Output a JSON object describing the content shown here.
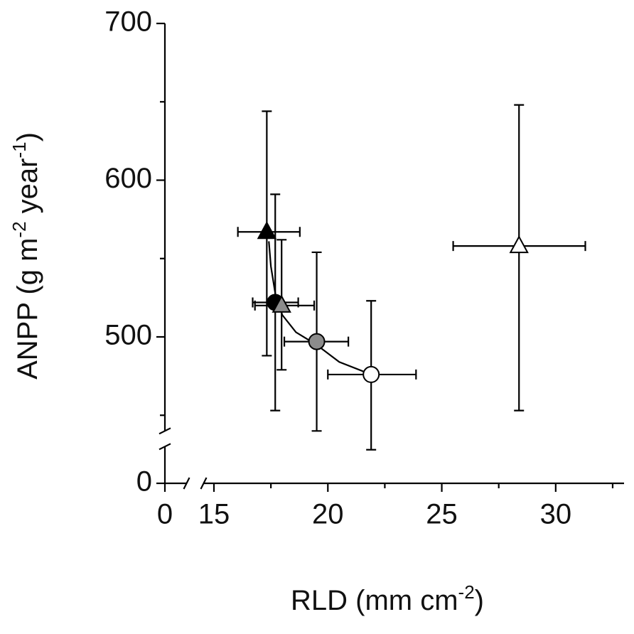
{
  "chart_data": {
    "type": "scatter",
    "xlabel": [
      "RLD (mm cm",
      "-2",
      ")"
    ],
    "ylabel": [
      "ANPP (g m",
      "-2",
      " year",
      "-1",
      ")"
    ],
    "xlim": [
      0,
      33
    ],
    "ylim": [
      0,
      700
    ],
    "x_break": [
      0,
      15
    ],
    "y_break": [
      0,
      440
    ],
    "xticks": [
      0,
      15,
      20,
      25,
      30
    ],
    "xticks_minor": [
      17.5,
      22.5,
      27.5,
      32.5
    ],
    "yticks": [
      0,
      500,
      600,
      700
    ],
    "yticks_minor": [
      450,
      550,
      650
    ],
    "x": [
      17.32,
      17.69,
      17.97,
      19.51,
      21.9,
      28.39
    ],
    "y": [
      567,
      522,
      520,
      497,
      476,
      558
    ],
    "x_low": [
      16.05,
      16.7,
      16.8,
      18.09,
      20.0,
      25.5
    ],
    "x_high": [
      18.77,
      18.7,
      19.4,
      20.9,
      23.87,
      31.3
    ],
    "y_low": [
      488,
      453,
      479,
      440,
      428,
      453
    ],
    "y_high": [
      644,
      591,
      562,
      554,
      523,
      648
    ],
    "markers": [
      "triangle",
      "circle",
      "triangle",
      "circle",
      "circle",
      "triangle"
    ],
    "colors": [
      "#000000",
      "#000000",
      "#8c8c8c",
      "#8c8c8c",
      "#ffffff",
      "#ffffff"
    ],
    "curve": {
      "color": "#000000",
      "x": [
        17.41,
        17.5,
        17.7,
        18.0,
        18.6,
        19.5,
        20.5,
        21.9
      ],
      "y": [
        561,
        545,
        527,
        514,
        503,
        495,
        484,
        476
      ]
    }
  }
}
